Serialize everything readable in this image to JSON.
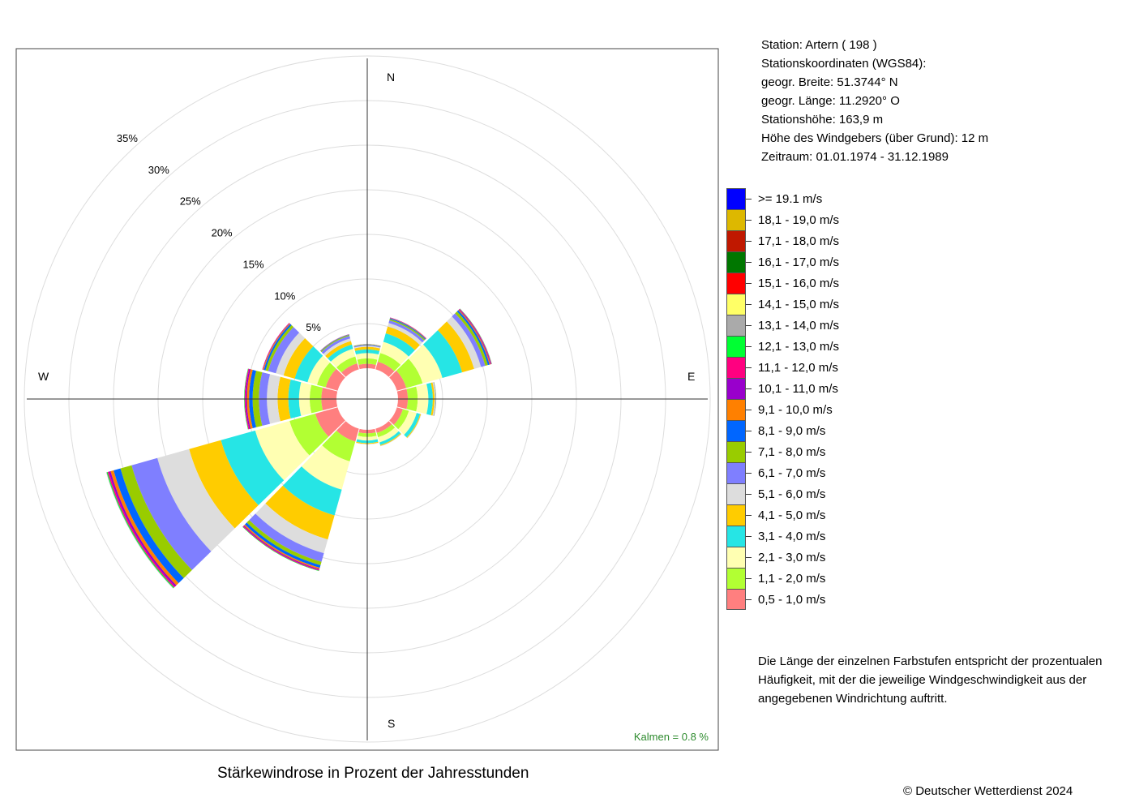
{
  "station_info": {
    "station": "Station:  Artern  ( 198 )",
    "coords_heading": "Stationskoordinaten (WGS84):",
    "latitude": "geogr. Breite: 51.3744° N",
    "longitude": "geogr. Länge: 11.2920° O",
    "elevation": "Stationshöhe: 163,9 m",
    "sensor_height": "Höhe des Windgebers (über Grund): 12 m",
    "period": "Zeitraum: 01.01.1974 - 31.12.1989"
  },
  "compass": {
    "n": "N",
    "e": "E",
    "s": "S",
    "w": "W"
  },
  "calm_label": "Kalmen  =  0.8 %",
  "note": "Die Länge der einzelnen Farbstufen entspricht der prozentualen Häufigkeit, mit der die jeweilige Windgeschwindigkeit aus der angegebenen Windrichtung auftritt.",
  "caption": "Stärkewindrose in Prozent der Jahresstunden",
  "copyright": "© Deutscher Wetterdienst  2024",
  "chart_data": {
    "type": "windrose",
    "title": "Stärkewindrose in Prozent der Jahresstunden",
    "radial_ticks": [
      5,
      10,
      15,
      20,
      25,
      30,
      35
    ],
    "radial_tick_labels": [
      "5%",
      "10%",
      "15%",
      "20%",
      "25%",
      "30%",
      "35%"
    ],
    "calm_percent": 0.8,
    "directions_deg": [
      0,
      30,
      60,
      90,
      120,
      150,
      180,
      210,
      240,
      270,
      300,
      330
    ],
    "speed_classes": [
      {
        "label": "0,5 - 1,0 m/s",
        "color": "#ff7f7f"
      },
      {
        "label": "1,1 - 2,0 m/s",
        "color": "#b2ff33"
      },
      {
        "label": "2,1 - 3,0 m/s",
        "color": "#ffffb2"
      },
      {
        "label": "3,1 - 4,0 m/s",
        "color": "#26e5e5"
      },
      {
        "label": "4,1 - 5,0 m/s",
        "color": "#ffcc00"
      },
      {
        "label": "5,1 - 6,0 m/s",
        "color": "#dddddd"
      },
      {
        "label": "6,1 - 7,0 m/s",
        "color": "#7f7fff"
      },
      {
        "label": "7,1 - 8,0 m/s",
        "color": "#99cc00"
      },
      {
        "label": "8,1 - 9,0 m/s",
        "color": "#0066ff"
      },
      {
        "label": "9,1 - 10,0 m/s",
        "color": "#ff8000"
      },
      {
        "label": "10,1 - 11,0 m/s",
        "color": "#9900cc"
      },
      {
        "label": "11,1 - 12,0 m/s",
        "color": "#ff0080"
      },
      {
        "label": "12,1 - 13,0 m/s",
        "color": "#00ff33"
      },
      {
        "label": "13,1 - 14,0 m/s",
        "color": "#aaaaaa"
      },
      {
        "label": "14,1 - 15,0 m/s",
        "color": "#ffff66"
      },
      {
        "label": "15,1 - 16,0 m/s",
        "color": "#ff0000"
      },
      {
        "label": "16,1 - 17,0 m/s",
        "color": "#007700"
      },
      {
        "label": "17,1 - 18,0 m/s",
        "color": "#c01800"
      },
      {
        "label": "18,1 - 19,0 m/s",
        "color": "#ddb800"
      },
      {
        "label": ">= 19.1 m/s",
        "color": "#0000ff"
      }
    ],
    "series": [
      {
        "direction": "N",
        "deg": 0,
        "values": [
          0.5,
          0.6,
          0.6,
          0.4,
          0.3,
          0.1,
          0.1,
          0.05,
          0.03,
          0.02
        ]
      },
      {
        "direction": "NNE",
        "deg": 30,
        "values": [
          0.9,
          1.0,
          1.3,
          1.0,
          0.8,
          0.4,
          0.3,
          0.15,
          0.1,
          0.05,
          0.03,
          0.02
        ]
      },
      {
        "direction": "ENE",
        "deg": 60,
        "values": [
          1.1,
          1.9,
          2.3,
          2.3,
          1.4,
          0.8,
          0.5,
          0.3,
          0.2,
          0.1,
          0.08,
          0.05,
          0.03,
          0.02
        ]
      },
      {
        "direction": "E",
        "deg": 90,
        "values": [
          1.1,
          1.1,
          1.2,
          0.5,
          0.2,
          0.1,
          0.05,
          0.03
        ]
      },
      {
        "direction": "ESE",
        "deg": 120,
        "values": [
          0.7,
          0.7,
          0.9,
          0.4,
          0.1,
          0.05
        ]
      },
      {
        "direction": "SSE",
        "deg": 150,
        "values": [
          0.5,
          0.5,
          0.6,
          0.3,
          0.1,
          0.05
        ]
      },
      {
        "direction": "S",
        "deg": 180,
        "values": [
          0.4,
          0.4,
          0.4,
          0.3,
          0.1,
          0.05
        ]
      },
      {
        "direction": "SSW",
        "deg": 210,
        "values": [
          1.5,
          2.3,
          3.3,
          3.0,
          2.8,
          1.6,
          1.0,
          0.4,
          0.3,
          0.15,
          0.1,
          0.08,
          0.05
        ]
      },
      {
        "direction": "WSW",
        "deg": 240,
        "values": [
          2.6,
          3.0,
          4.0,
          4.0,
          3.7,
          3.7,
          3.0,
          1.3,
          0.8,
          0.35,
          0.2,
          0.15,
          0.1,
          0.05
        ]
      },
      {
        "direction": "W",
        "deg": 270,
        "values": [
          1.7,
          1.3,
          1.2,
          1.2,
          1.2,
          1.2,
          0.9,
          0.7,
          0.4,
          0.25,
          0.15,
          0.1,
          0.05
        ]
      },
      {
        "direction": "WNW",
        "deg": 300,
        "values": [
          1.4,
          1.0,
          1.1,
          1.5,
          1.3,
          0.9,
          0.9,
          0.3,
          0.2,
          0.1,
          0.05,
          0.03
        ]
      },
      {
        "direction": "NNW",
        "deg": 330,
        "values": [
          0.7,
          0.8,
          0.9,
          0.5,
          0.4,
          0.3,
          0.3,
          0.1,
          0.05,
          0.03,
          0.02
        ]
      }
    ]
  }
}
